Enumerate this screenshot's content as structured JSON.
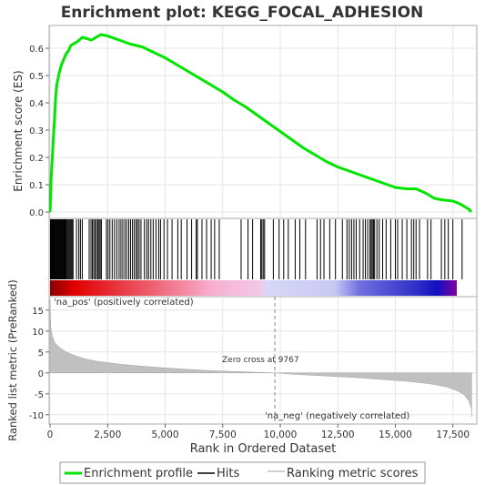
{
  "chart_data": {
    "type": "line",
    "title": "Enrichment plot: KEGG_FOCAL_ADHESION",
    "xlabel": "Rank in Ordered Dataset",
    "xlim": [
      0,
      18500
    ],
    "x_ticks": [
      "0",
      "2,500",
      "5,000",
      "7,500",
      "10,000",
      "12,500",
      "15,000",
      "17,500"
    ],
    "x_tick_values": [
      0,
      2500,
      5000,
      7500,
      10000,
      12500,
      15000,
      17500
    ],
    "es_panel": {
      "ylabel": "Enrichment score (ES)",
      "ylim": [
        -0.02,
        0.68
      ],
      "y_ticks": [
        "0.0",
        "0.1",
        "0.2",
        "0.3",
        "0.4",
        "0.5",
        "0.6"
      ],
      "y_tick_values": [
        0.0,
        0.1,
        0.2,
        0.3,
        0.4,
        0.5,
        0.6
      ],
      "series": [
        {
          "name": "Enrichment profile",
          "color": "#00e600",
          "x": [
            0,
            50,
            100,
            150,
            200,
            250,
            300,
            400,
            500,
            600,
            700,
            800,
            900,
            1000,
            1200,
            1400,
            1600,
            1800,
            2000,
            2200,
            2500,
            3000,
            3500,
            4000,
            4500,
            5000,
            5500,
            6000,
            6500,
            7000,
            7500,
            8000,
            8500,
            9000,
            9500,
            10000,
            10500,
            11000,
            11500,
            12000,
            12500,
            13000,
            13500,
            14000,
            14500,
            15000,
            15500,
            15900,
            16300,
            16700,
            17000,
            17500,
            17800,
            18000,
            18200,
            18300
          ],
          "y": [
            0.0,
            0.13,
            0.2,
            0.28,
            0.35,
            0.43,
            0.47,
            0.51,
            0.54,
            0.56,
            0.58,
            0.59,
            0.61,
            0.615,
            0.625,
            0.64,
            0.635,
            0.63,
            0.64,
            0.65,
            0.645,
            0.63,
            0.615,
            0.605,
            0.585,
            0.565,
            0.54,
            0.515,
            0.49,
            0.465,
            0.44,
            0.41,
            0.385,
            0.355,
            0.325,
            0.295,
            0.265,
            0.235,
            0.21,
            0.185,
            0.165,
            0.15,
            0.135,
            0.12,
            0.105,
            0.09,
            0.085,
            0.085,
            0.07,
            0.05,
            0.045,
            0.04,
            0.03,
            0.02,
            0.01,
            0.0
          ]
        }
      ]
    },
    "hits_panel": {
      "name": "Hits",
      "hit_ranks": [
        20,
        60,
        90,
        120,
        150,
        180,
        210,
        240,
        270,
        300,
        330,
        360,
        390,
        420,
        450,
        480,
        510,
        540,
        570,
        600,
        630,
        660,
        690,
        720,
        760,
        800,
        840,
        880,
        920,
        960,
        1000,
        1150,
        1250,
        1320,
        1400,
        1700,
        1780,
        1840,
        1900,
        1960,
        2020,
        2080,
        2130,
        2180,
        2230,
        2450,
        2520,
        2600,
        2700,
        2800,
        2900,
        3000,
        3080,
        3160,
        3250,
        3330,
        3420,
        3500,
        3580,
        3660,
        3740,
        3800,
        3870,
        3950,
        4100,
        4200,
        4280,
        4380,
        4480,
        4600,
        4720,
        4800,
        4950,
        5100,
        5300,
        5550,
        5700,
        5950,
        6150,
        6350,
        6400,
        6600,
        6800,
        7000,
        7150,
        7350,
        8300,
        8600,
        8800,
        9150,
        9200,
        9260,
        9320,
        9700,
        9950,
        10150,
        10350,
        10650,
        10850,
        11100,
        11600,
        11750,
        11900,
        12150,
        12400,
        12700,
        12900,
        13000,
        13100,
        13200,
        13300,
        13450,
        13600,
        13700,
        13800,
        13900,
        13950,
        14000,
        14050,
        14100,
        14200,
        14300,
        14450,
        14600,
        14800,
        15000,
        15100,
        15300,
        15500,
        15700,
        15800,
        15900,
        16050,
        16400,
        16550,
        17000,
        17150,
        17300,
        17500,
        17900
      ]
    },
    "ranked_metric_panel": {
      "name": "Ranking metric scores",
      "ylabel": "Ranked list metric (PreRanked)",
      "ylim": [
        -12,
        18
      ],
      "y_ticks": [
        "15",
        "10",
        "5",
        "0",
        "-5",
        "-10"
      ],
      "y_tick_values": [
        15,
        10,
        5,
        0,
        -5,
        -10
      ],
      "x": [
        0,
        30,
        100,
        200,
        400,
        700,
        1000,
        1500,
        2000,
        3000,
        4000,
        5000,
        6000,
        7000,
        8000,
        9000,
        9767,
        10500,
        11500,
        12500,
        13500,
        14500,
        15500,
        16500,
        17200,
        17700,
        18000,
        18200,
        18300,
        18320
      ],
      "values": [
        17.5,
        11.0,
        8.8,
        7.3,
        6.1,
        5.0,
        4.3,
        3.4,
        2.8,
        2.1,
        1.6,
        1.2,
        0.85,
        0.55,
        0.35,
        0.15,
        0.0,
        -0.3,
        -0.6,
        -0.9,
        -1.2,
        -1.6,
        -2.0,
        -2.6,
        -3.3,
        -4.3,
        -5.3,
        -6.8,
        -8.5,
        -10.5
      ],
      "zero_cross": 9767
    },
    "annotations": {
      "zero_cross": "Zero cross at 9767",
      "pos_label": "'na_pos' (positively correlated)",
      "neg_label": "'na_neg' (negatively correlated)"
    },
    "legend": {
      "placement": "bottom",
      "items": [
        {
          "label": "Enrichment profile",
          "color": "#00e600"
        },
        {
          "label": "Hits",
          "color": "#000000"
        },
        {
          "label": "Ranking metric scores",
          "color": "#c0c0c0"
        }
      ]
    },
    "colors": {
      "pos": "#e00000",
      "neg": "#0000c0",
      "metric_fill": "#c0c0c0",
      "pos_text": "#cc0000",
      "neg_text": "#0000cc"
    }
  }
}
